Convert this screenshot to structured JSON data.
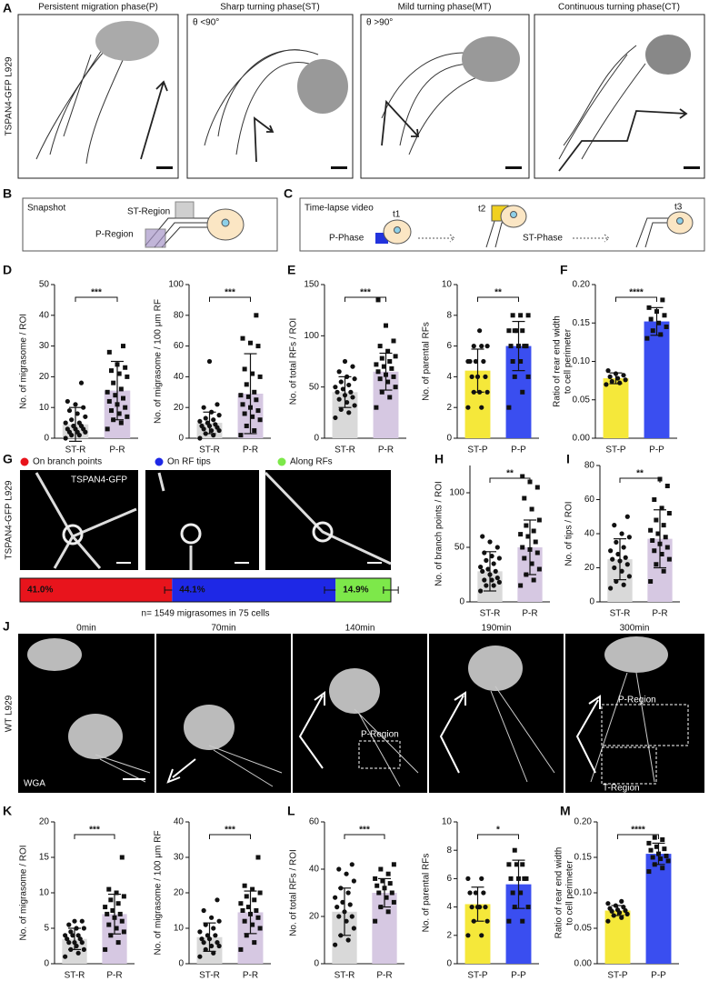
{
  "panel_labels": [
    "A",
    "B",
    "C",
    "D",
    "E",
    "F",
    "G",
    "H",
    "I",
    "J",
    "K",
    "L",
    "M"
  ],
  "panel_a": {
    "titles": [
      "Persistent migration phase(P)",
      "Sharp turning phase(ST)",
      "Mild turning phase(MT)",
      "Continuous turning phase(CT)"
    ],
    "side_label": "TSPAN4-GFP L929",
    "angle_labels": [
      "θ <90°",
      "θ >90°"
    ]
  },
  "panel_b": {
    "title": "Snapshot",
    "regions": [
      "ST-Region",
      "P-Region"
    ]
  },
  "panel_c": {
    "title": "Time-lapse video",
    "times": [
      "t1",
      "t2",
      "t3"
    ],
    "phases": [
      "P-Phase",
      "ST-Phase"
    ]
  },
  "panel_g": {
    "side_label": "TSPAN4-GFP L929",
    "image_label": "TSPAN4-GFP"
  },
  "panel_j": {
    "times": [
      "0min",
      "70min",
      "140min",
      "190min",
      "300min"
    ],
    "side_label": "WT L929",
    "stain": "WGA",
    "regions": [
      "P-Region",
      "P-Region",
      "T-Region"
    ]
  },
  "chart_data": [
    {
      "type": "bar",
      "ylabel": "No. of migrasome / ROI",
      "categories": [
        "ST-R",
        "P-R"
      ],
      "values": [
        4.5,
        15.5
      ],
      "errors": [
        5.5,
        9.5
      ],
      "colors": [
        "#d9d9d9",
        "#d6c8e2"
      ],
      "markers": [
        "circle",
        "square"
      ],
      "significance": "***",
      "ylim": [
        0,
        50
      ],
      "yticks": [
        0,
        10,
        20,
        30,
        40,
        50
      ],
      "points": [
        [
          0,
          1,
          1,
          2,
          2,
          2,
          3,
          3,
          3,
          4,
          4,
          5,
          5,
          6,
          7,
          8,
          9,
          10,
          11,
          12,
          18
        ],
        [
          3,
          5,
          6,
          7,
          8,
          9,
          10,
          11,
          12,
          13,
          14,
          15,
          16,
          18,
          20,
          21,
          22,
          23,
          24,
          28,
          30
        ]
      ]
    },
    {
      "type": "bar",
      "ylabel": "No. of migrasome / 100 μm RF",
      "categories": [
        "ST-R",
        "P-R"
      ],
      "values": [
        10,
        29
      ],
      "errors": [
        7,
        26
      ],
      "colors": [
        "#d9d9d9",
        "#d6c8e2"
      ],
      "markers": [
        "circle",
        "square"
      ],
      "significance": "***",
      "ylim": [
        0,
        100
      ],
      "yticks": [
        0,
        20,
        40,
        60,
        80,
        100
      ],
      "points": [
        [
          0,
          2,
          3,
          5,
          5,
          6,
          7,
          8,
          8,
          9,
          10,
          11,
          12,
          13,
          15,
          17,
          20,
          22,
          50
        ],
        [
          2,
          5,
          8,
          12,
          14,
          16,
          18,
          20,
          22,
          25,
          27,
          28,
          30,
          35,
          40,
          42,
          45,
          60,
          62,
          65,
          80
        ]
      ]
    },
    {
      "type": "bar",
      "ylabel": "No. of total RFs / ROI",
      "categories": [
        "ST-R",
        "P-R"
      ],
      "values": [
        45,
        65
      ],
      "errors": [
        15,
        18
      ],
      "colors": [
        "#d9d9d9",
        "#d6c8e2"
      ],
      "markers": [
        "circle",
        "square"
      ],
      "significance": "***",
      "ylim": [
        0,
        150
      ],
      "yticks": [
        0,
        50,
        100,
        150
      ],
      "points": [
        [
          20,
          25,
          28,
          32,
          35,
          38,
          40,
          42,
          45,
          45,
          48,
          50,
          52,
          55,
          58,
          60,
          65,
          70,
          75
        ],
        [
          30,
          40,
          45,
          50,
          55,
          58,
          60,
          62,
          65,
          68,
          70,
          72,
          75,
          78,
          80,
          85,
          90,
          95,
          110,
          135
        ]
      ]
    },
    {
      "type": "bar",
      "ylabel": "No. of parental RFs",
      "categories": [
        "ST-P",
        "P-P"
      ],
      "values": [
        4.4,
        6.0
      ],
      "errors": [
        1.4,
        1.6
      ],
      "colors": [
        "#f5e83a",
        "#3a4ef0"
      ],
      "markers": [
        "circle",
        "square"
      ],
      "significance": "**",
      "ylim": [
        0,
        10
      ],
      "yticks": [
        0,
        2,
        4,
        6,
        8,
        10
      ],
      "points": [
        [
          2,
          2,
          3,
          3,
          3,
          4,
          4,
          4,
          5,
          5,
          5,
          5,
          6,
          6,
          6,
          7
        ],
        [
          2,
          3,
          4,
          4,
          5,
          5,
          6,
          6,
          6,
          6,
          7,
          7,
          7,
          7,
          8,
          8,
          8
        ]
      ]
    },
    {
      "type": "bar",
      "ylabel": [
        "Ratio of rear end width",
        "to cell perimeter"
      ],
      "categories": [
        "ST-P",
        "P-P"
      ],
      "values": [
        0.078,
        0.152
      ],
      "errors": [
        0.007,
        0.018
      ],
      "colors": [
        "#f5e83a",
        "#3a4ef0"
      ],
      "markers": [
        "circle",
        "square"
      ],
      "significance": "****",
      "ylim": [
        0,
        0.2
      ],
      "yticks": [
        {
          "value": 0,
          "label": "0.00"
        },
        0.05,
        {
          "value": 0.1,
          "label": "0.10"
        },
        0.15,
        {
          "value": 0.2,
          "label": "0.20"
        }
      ],
      "points": [
        [
          0.07,
          0.072,
          0.074,
          0.076,
          0.078,
          0.08,
          0.082,
          0.084,
          0.088
        ],
        [
          0.13,
          0.135,
          0.14,
          0.145,
          0.15,
          0.155,
          0.16,
          0.165,
          0.17,
          0.18
        ]
      ]
    },
    {
      "type": "stacked-hbar",
      "xlim": [
        0,
        100
      ],
      "caption": "n= 1549 migrasomes in 75 cells",
      "series": [
        {
          "name": "On branch points",
          "color": "#e8141c",
          "values": [
            41.0
          ],
          "value_labels": [
            "41.0%"
          ],
          "errors": [
            2
          ]
        },
        {
          "name": "On RF tips",
          "color": "#1e28e6",
          "values": [
            44.1
          ],
          "value_labels": [
            "44.1%"
          ],
          "errors": [
            3
          ]
        },
        {
          "name": "Along RFs",
          "color": "#7de84a",
          "values": [
            14.9
          ],
          "value_labels": [
            "14.9%"
          ],
          "errors": [
            2
          ]
        }
      ]
    },
    {
      "type": "bar",
      "ylabel": "No. of branch points / ROI",
      "categories": [
        "ST-R",
        "P-R"
      ],
      "values": [
        28,
        50
      ],
      "errors": [
        18,
        25
      ],
      "colors": [
        "#d9d9d9",
        "#d6c8e2"
      ],
      "markers": [
        "circle",
        "square"
      ],
      "significance": "**",
      "ylim": [
        0,
        125
      ],
      "yticks": [
        0,
        50,
        100
      ],
      "points": [
        [
          10,
          15,
          15,
          18,
          20,
          20,
          22,
          25,
          28,
          28,
          30,
          32,
          35,
          38,
          40,
          42,
          45,
          50,
          55,
          60
        ],
        [
          15,
          20,
          25,
          30,
          35,
          40,
          45,
          48,
          50,
          55,
          60,
          62,
          65,
          70,
          75,
          85,
          95,
          105,
          110,
          115
        ]
      ]
    },
    {
      "type": "bar",
      "ylabel": "No. of tips / ROI",
      "categories": [
        "ST-R",
        "P-R"
      ],
      "values": [
        25,
        37
      ],
      "errors": [
        12,
        17
      ],
      "colors": [
        "#d9d9d9",
        "#d6c8e2"
      ],
      "markers": [
        "circle",
        "square"
      ],
      "significance": "**",
      "ylim": [
        0,
        80
      ],
      "yticks": [
        0,
        20,
        40,
        60,
        80
      ],
      "points": [
        [
          8,
          10,
          12,
          15,
          18,
          20,
          22,
          24,
          25,
          26,
          28,
          30,
          32,
          35,
          38,
          40,
          45,
          50
        ],
        [
          12,
          18,
          22,
          25,
          28,
          30,
          32,
          34,
          36,
          38,
          40,
          42,
          45,
          48,
          52,
          55,
          60,
          68,
          72
        ]
      ]
    },
    {
      "type": "bar",
      "ylabel": "No. of migrasome / ROI",
      "categories": [
        "ST-R",
        "P-R"
      ],
      "values": [
        3.5,
        7
      ],
      "errors": [
        1.5,
        2.8
      ],
      "colors": [
        "#d9d9d9",
        "#d6c8e2"
      ],
      "markers": [
        "circle",
        "square"
      ],
      "significance": "***",
      "ylim": [
        0,
        20
      ],
      "yticks": [
        0,
        5,
        10,
        15,
        20
      ],
      "points": [
        [
          1,
          1.5,
          2,
          2,
          2.5,
          3,
          3,
          3,
          3.5,
          3.5,
          4,
          4,
          4,
          4.5,
          5,
          5,
          5.5,
          6,
          6
        ],
        [
          2,
          3,
          4,
          4.5,
          5,
          5.5,
          6,
          6.5,
          7,
          7,
          7.5,
          8,
          8.5,
          9,
          9.5,
          10,
          10.5,
          15
        ]
      ]
    },
    {
      "type": "bar",
      "ylabel": "No. of migrasome / 100 μm RF",
      "categories": [
        "ST-R",
        "P-R"
      ],
      "values": [
        7.5,
        14.5
      ],
      "errors": [
        4,
        6
      ],
      "colors": [
        "#d9d9d9",
        "#d6c8e2"
      ],
      "markers": [
        "circle",
        "square"
      ],
      "significance": "***",
      "ylim": [
        0,
        40
      ],
      "yticks": [
        0,
        10,
        20,
        30,
        40
      ],
      "points": [
        [
          2,
          3,
          4,
          5,
          5,
          6,
          6,
          7,
          7,
          8,
          8,
          9,
          10,
          11,
          12,
          13,
          15,
          18
        ],
        [
          4,
          6,
          8,
          10,
          11,
          12,
          13,
          14,
          15,
          15,
          16,
          17,
          18,
          19,
          20,
          21,
          22,
          30
        ]
      ]
    },
    {
      "type": "bar",
      "ylabel": "No. of total RFs / ROI",
      "categories": [
        "ST-R",
        "P-R"
      ],
      "values": [
        22,
        30
      ],
      "errors": [
        10,
        6
      ],
      "colors": [
        "#d9d9d9",
        "#d6c8e2"
      ],
      "markers": [
        "circle",
        "square"
      ],
      "significance": "***",
      "ylim": [
        0,
        60
      ],
      "yticks": [
        0,
        20,
        40,
        60
      ],
      "points": [
        [
          8,
          10,
          12,
          15,
          18,
          20,
          20,
          22,
          24,
          25,
          26,
          28,
          30,
          32,
          35,
          38,
          40,
          42
        ],
        [
          18,
          22,
          24,
          26,
          28,
          30,
          30,
          32,
          33,
          34,
          35,
          36,
          38,
          40,
          42
        ]
      ]
    },
    {
      "type": "bar",
      "ylabel": "No. of parental RFs",
      "categories": [
        "ST-P",
        "P-P"
      ],
      "values": [
        4.2,
        5.6
      ],
      "errors": [
        1.2,
        1.7
      ],
      "colors": [
        "#f5e83a",
        "#3a4ef0"
      ],
      "markers": [
        "circle",
        "square"
      ],
      "significance": "*",
      "ylim": [
        0,
        10
      ],
      "yticks": [
        0,
        2,
        4,
        6,
        8,
        10
      ],
      "points": [
        [
          2,
          2,
          3,
          3,
          4,
          4,
          4,
          4,
          5,
          5,
          5,
          6,
          6
        ],
        [
          3,
          3,
          4,
          4,
          5,
          5,
          6,
          6,
          6,
          6,
          7,
          7,
          7,
          8
        ]
      ]
    },
    {
      "type": "bar",
      "ylabel": [
        "Ratio of rear end width",
        "to cell perimeter"
      ],
      "categories": [
        "ST-P",
        "P-P"
      ],
      "values": [
        0.075,
        0.155
      ],
      "errors": [
        0.007,
        0.015
      ],
      "colors": [
        "#f5e83a",
        "#3a4ef0"
      ],
      "markers": [
        "circle",
        "square"
      ],
      "significance": "****",
      "ylim": [
        0,
        0.2
      ],
      "yticks": [
        {
          "value": 0,
          "label": "0.00"
        },
        0.05,
        {
          "value": 0.1,
          "label": "0.10"
        },
        0.15,
        {
          "value": 0.2,
          "label": "0.20"
        }
      ],
      "points": [
        [
          0.06,
          0.065,
          0.068,
          0.07,
          0.072,
          0.074,
          0.075,
          0.076,
          0.078,
          0.08,
          0.082,
          0.085,
          0.088
        ],
        [
          0.13,
          0.135,
          0.14,
          0.145,
          0.148,
          0.15,
          0.152,
          0.155,
          0.16,
          0.162,
          0.165,
          0.17,
          0.175,
          0.178
        ]
      ]
    }
  ]
}
